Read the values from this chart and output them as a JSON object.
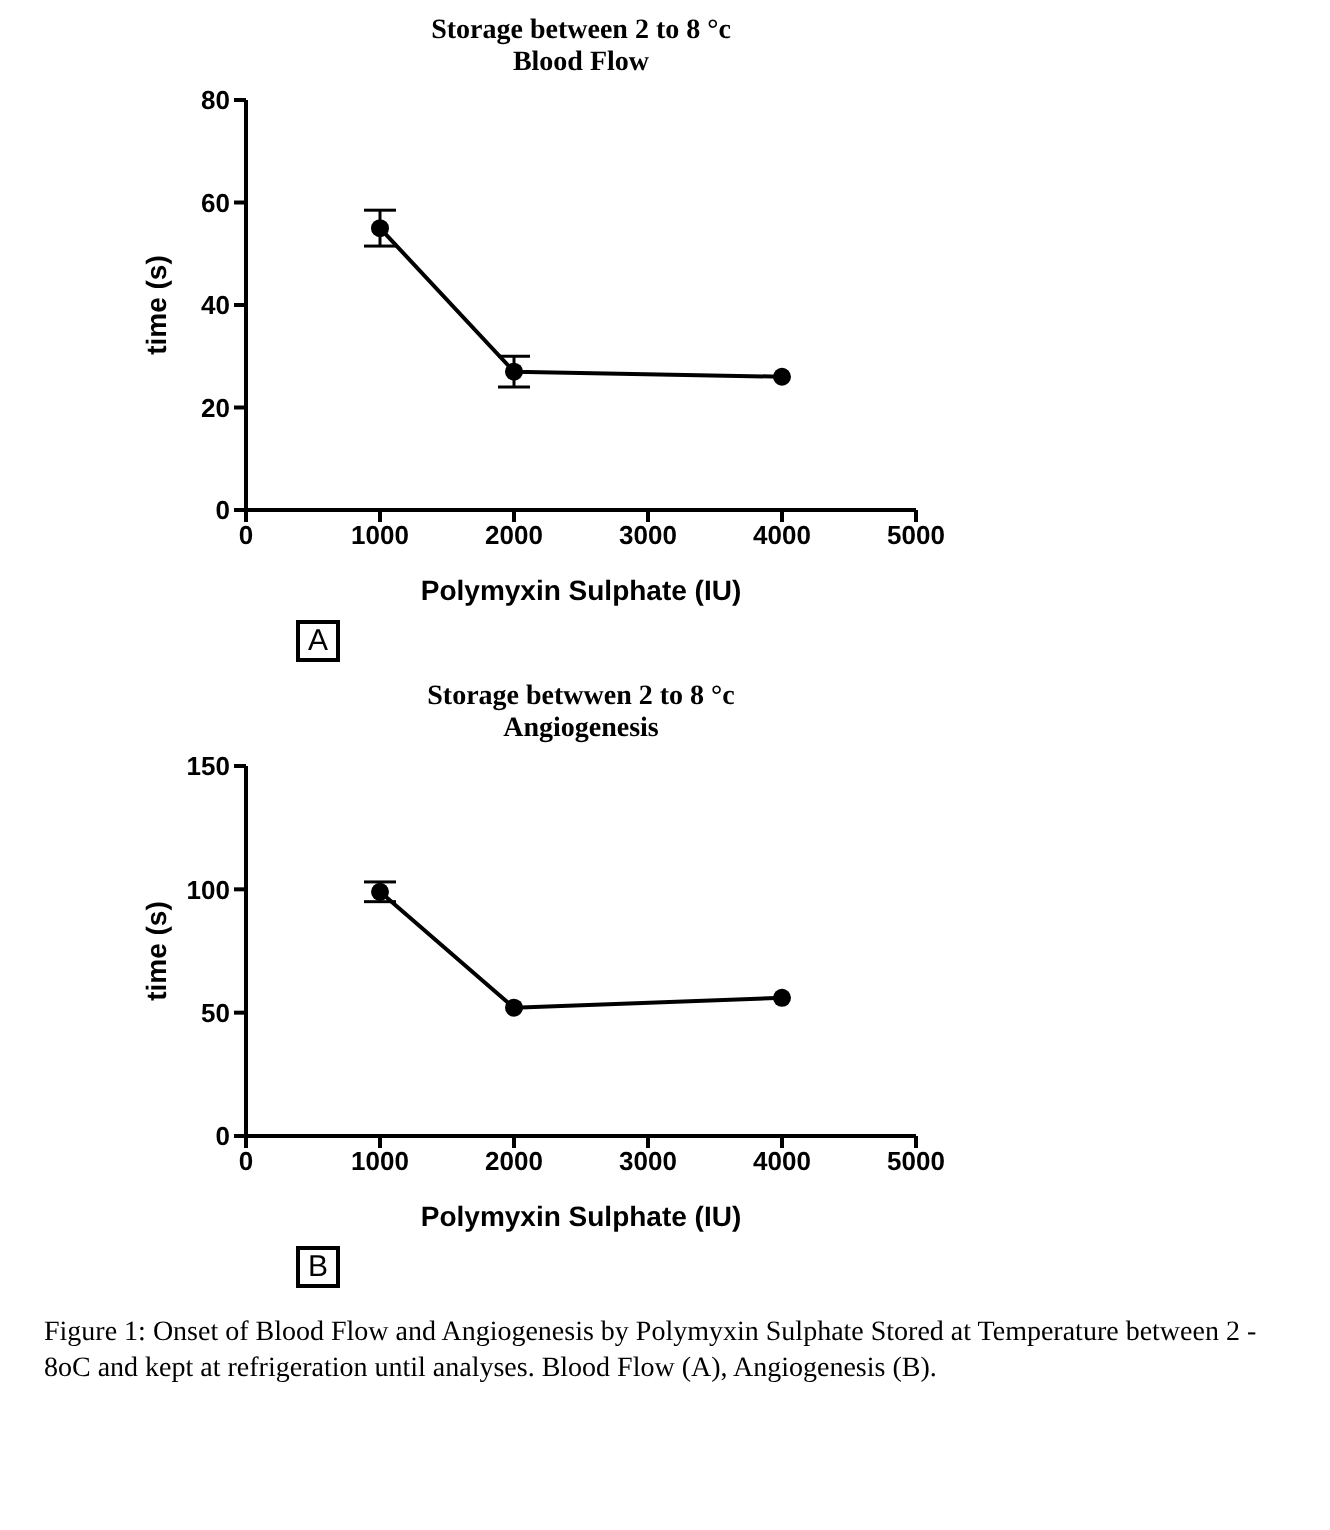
{
  "chart_data": [
    {
      "type": "line",
      "title": "Storage between 2 to 8 °c",
      "subtitle": "Blood Flow",
      "xlabel": "Polymyxin Sulphate (IU)",
      "ylabel": "time (s)",
      "x": [
        1000,
        2000,
        4000
      ],
      "series": [
        {
          "color": "#000000",
          "values": [
            55,
            27,
            26
          ],
          "errors": [
            3.5,
            3,
            null
          ]
        }
      ],
      "xlim": [
        0,
        5000
      ],
      "xticks": [
        0,
        1000,
        2000,
        3000,
        4000,
        5000
      ],
      "ylim": [
        0,
        80
      ],
      "yticks": [
        0,
        20,
        40,
        60,
        80
      ],
      "grid": false,
      "legend": false,
      "marker": "circle",
      "line_style": "solid",
      "annotations": [
        "A"
      ]
    },
    {
      "type": "line",
      "title": "Storage betwwen 2 to 8 °c",
      "subtitle": "Angiogenesis",
      "xlabel": "Polymyxin Sulphate (IU)",
      "ylabel": "time (s)",
      "x": [
        1000,
        2000,
        4000
      ],
      "series": [
        {
          "color": "#000000",
          "values": [
            99,
            52,
            56
          ],
          "errors": [
            4,
            null,
            null
          ]
        }
      ],
      "xlim": [
        0,
        5000
      ],
      "xticks": [
        0,
        1000,
        2000,
        3000,
        4000,
        5000
      ],
      "ylim": [
        0,
        150
      ],
      "yticks": [
        0,
        50,
        100,
        150
      ],
      "grid": false,
      "legend": false,
      "marker": "circle",
      "line_style": "solid",
      "annotations": [
        "B",
        "Figure 1: Onset of  Blood Flow and Angiogenesis by Polymyxin Sulphate Stored at Temperature between 2 - 8oC and kept at refrigeration until analyses. Blood Flow (A), Angiogenesis (B)."
      ]
    }
  ]
}
